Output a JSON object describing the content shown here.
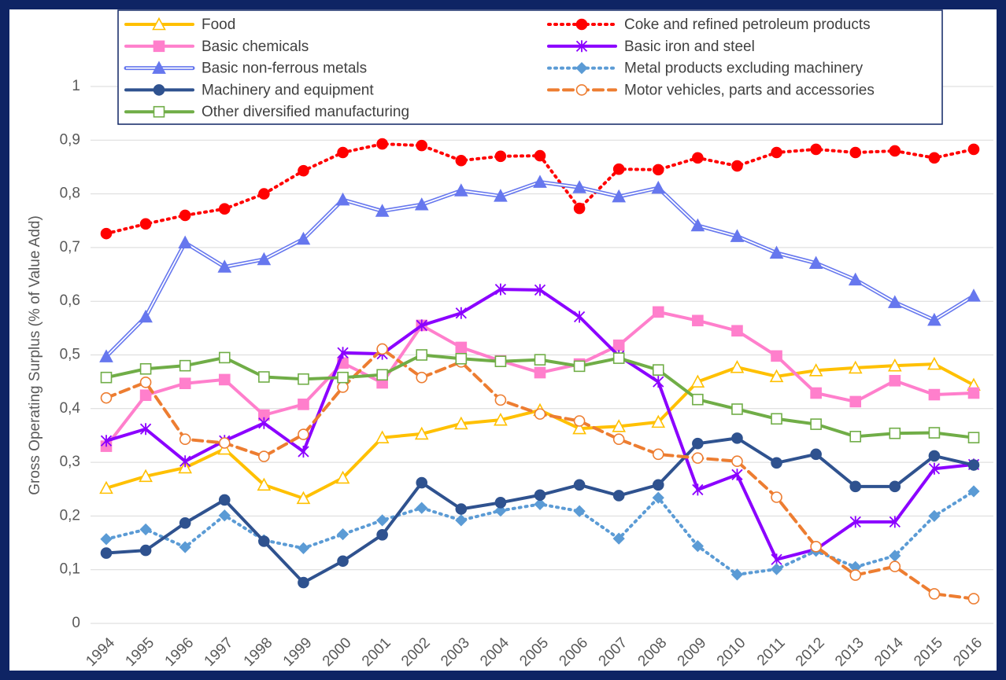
{
  "chart_data": {
    "type": "line",
    "y_label": "Gross Operating Surplus (% of Value Add)",
    "categories": [
      "1994",
      "1995",
      "1996",
      "1997",
      "1998",
      "1999",
      "2000",
      "2001",
      "2002",
      "2003",
      "2004",
      "2005",
      "2006",
      "2007",
      "2008",
      "2009",
      "2010",
      "2011",
      "2012",
      "2013",
      "2014",
      "2015",
      "2016"
    ],
    "ylim": [
      0,
      1
    ],
    "yticks": [
      0,
      {
        "value": 0.1,
        "label": "0,1"
      },
      {
        "value": 0.2,
        "label": "0,2"
      },
      {
        "value": 0.3,
        "label": "0,3"
      },
      {
        "value": 0.4,
        "label": "0,4"
      },
      {
        "value": 0.5,
        "label": "0,5"
      },
      {
        "value": 0.6,
        "label": "0,6"
      },
      {
        "value": 0.7,
        "label": "0,7"
      },
      {
        "value": 0.8,
        "label": "0,8"
      },
      {
        "value": 0.9,
        "label": "0,9"
      },
      1
    ],
    "grid": true,
    "legend": "top",
    "series": [
      {
        "name": "Food",
        "color": "#ffc000",
        "dash": "solid",
        "marker": "triangle-open",
        "values": [
          0.252,
          0.274,
          0.29,
          0.325,
          0.258,
          0.233,
          0.271,
          0.346,
          0.353,
          0.372,
          0.379,
          0.397,
          0.363,
          0.367,
          0.375,
          0.45,
          0.477,
          0.46,
          0.471,
          0.476,
          0.48,
          0.483,
          0.444
        ]
      },
      {
        "name": "Coke and refined petroleum products",
        "color": "#ff0000",
        "dash": "dotted",
        "marker": "circle",
        "values": [
          0.726,
          0.744,
          0.76,
          0.772,
          0.8,
          0.843,
          0.877,
          0.893,
          0.89,
          0.862,
          0.87,
          0.871,
          0.773,
          0.846,
          0.845,
          0.867,
          0.852,
          0.877,
          0.883,
          0.877,
          0.88,
          0.867,
          0.883
        ]
      },
      {
        "name": "Basic chemicals",
        "color": "#ff7fcc",
        "dash": "solid",
        "marker": "square",
        "values": [
          0.33,
          0.425,
          0.447,
          0.454,
          0.388,
          0.408,
          0.485,
          0.448,
          0.555,
          0.514,
          0.489,
          0.467,
          0.483,
          0.518,
          0.58,
          0.564,
          0.545,
          0.498,
          0.429,
          0.413,
          0.452,
          0.426,
          0.429
        ]
      },
      {
        "name": "Basic iron and steel",
        "color": "#8b00ff",
        "dash": "solid",
        "marker": "star",
        "values": [
          0.34,
          0.362,
          0.302,
          0.34,
          0.373,
          0.32,
          0.504,
          0.502,
          0.555,
          0.578,
          0.622,
          0.621,
          0.571,
          0.498,
          0.45,
          0.249,
          0.277,
          0.119,
          0.138,
          0.189,
          0.189,
          0.288,
          0.296
        ]
      },
      {
        "name": "Basic non-ferrous metals",
        "color": "#6677ee",
        "dash": "double",
        "marker": "triangle",
        "values": [
          0.497,
          0.571,
          0.709,
          0.664,
          0.678,
          0.716,
          0.789,
          0.768,
          0.78,
          0.806,
          0.796,
          0.822,
          0.812,
          0.795,
          0.811,
          0.741,
          0.721,
          0.69,
          0.671,
          0.64,
          0.598,
          0.565,
          0.61
        ]
      },
      {
        "name": "Metal products excluding machinery",
        "color": "#5b9bd5",
        "dash": "dotted",
        "marker": "diamond",
        "values": [
          0.157,
          0.175,
          0.142,
          0.201,
          0.155,
          0.14,
          0.166,
          0.192,
          0.215,
          0.192,
          0.21,
          0.222,
          0.209,
          0.158,
          0.234,
          0.144,
          0.091,
          0.101,
          0.135,
          0.105,
          0.126,
          0.2,
          0.246
        ]
      },
      {
        "name": "Machinery and equipment",
        "color": "#2f528f",
        "dash": "solid",
        "marker": "circle",
        "values": [
          0.131,
          0.136,
          0.187,
          0.23,
          0.153,
          0.076,
          0.116,
          0.165,
          0.262,
          0.213,
          0.225,
          0.239,
          0.258,
          0.238,
          0.258,
          0.335,
          0.345,
          0.299,
          0.315,
          0.255,
          0.255,
          0.312,
          0.295
        ]
      },
      {
        "name": "Motor vehicles, parts and accessories",
        "color": "#ed7d31",
        "dash": "dashed",
        "marker": "circle-open",
        "values": [
          0.42,
          0.449,
          0.343,
          0.336,
          0.311,
          0.352,
          0.44,
          0.511,
          0.458,
          0.487,
          0.416,
          0.39,
          0.377,
          0.343,
          0.315,
          0.308,
          0.302,
          0.235,
          0.143,
          0.09,
          0.106,
          0.055,
          0.046
        ]
      },
      {
        "name": "Other diversified manufacturing",
        "color": "#70ad47",
        "dash": "solid",
        "marker": "square-open",
        "values": [
          0.458,
          0.474,
          0.48,
          0.495,
          0.459,
          0.455,
          0.458,
          0.463,
          0.5,
          0.493,
          0.488,
          0.491,
          0.479,
          0.494,
          0.472,
          0.417,
          0.399,
          0.381,
          0.371,
          0.348,
          0.354,
          0.355,
          0.346
        ]
      }
    ]
  }
}
